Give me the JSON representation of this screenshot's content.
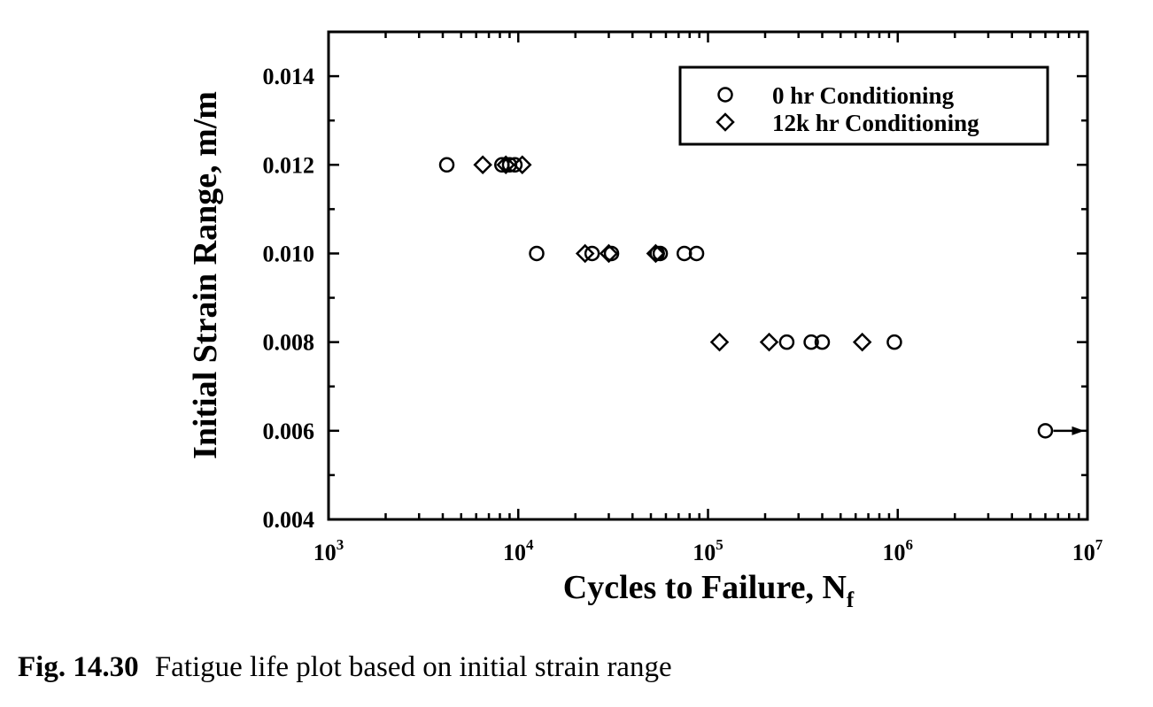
{
  "caption": {
    "number": "Fig. 14.30",
    "text": "Fatigue life plot based on initial strain range"
  },
  "chart_data": {
    "type": "scatter",
    "xlabel": "Cycles to Failure, N",
    "xlabel_subscript": "f",
    "ylabel": "Initial Strain Range, m/m",
    "x_scale": "log",
    "xlim": [
      1000,
      10000000
    ],
    "ylim": [
      0.004,
      0.015
    ],
    "x_ticks": [
      {
        "value": 1000,
        "base": "10",
        "exp": "3"
      },
      {
        "value": 10000,
        "base": "10",
        "exp": "4"
      },
      {
        "value": 100000,
        "base": "10",
        "exp": "5"
      },
      {
        "value": 1000000,
        "base": "10",
        "exp": "6"
      },
      {
        "value": 10000000,
        "base": "10",
        "exp": "7"
      }
    ],
    "y_ticks": [
      {
        "value": 0.004,
        "label": "0.004"
      },
      {
        "value": 0.006,
        "label": "0.006"
      },
      {
        "value": 0.008,
        "label": "0.008"
      },
      {
        "value": 0.01,
        "label": "0.010"
      },
      {
        "value": 0.012,
        "label": "0.012"
      },
      {
        "value": 0.014,
        "label": "0.014"
      }
    ],
    "grid": false,
    "legend_position": "top-right",
    "series": [
      {
        "name": "0 hr Conditioning",
        "marker": "circle",
        "points": [
          {
            "x": 4200,
            "y": 0.012
          },
          {
            "x": 8200,
            "y": 0.012
          },
          {
            "x": 9000,
            "y": 0.012
          },
          {
            "x": 9600,
            "y": 0.012
          },
          {
            "x": 12500,
            "y": 0.01
          },
          {
            "x": 24500,
            "y": 0.01
          },
          {
            "x": 31000,
            "y": 0.01
          },
          {
            "x": 54000,
            "y": 0.01
          },
          {
            "x": 56000,
            "y": 0.01
          },
          {
            "x": 75000,
            "y": 0.01
          },
          {
            "x": 87000,
            "y": 0.01
          },
          {
            "x": 260000,
            "y": 0.008
          },
          {
            "x": 350000,
            "y": 0.008
          },
          {
            "x": 400000,
            "y": 0.008
          },
          {
            "x": 960000,
            "y": 0.008
          },
          {
            "x": 6000000,
            "y": 0.006,
            "runout": true
          }
        ]
      },
      {
        "name": "12k hr Conditioning",
        "marker": "diamond",
        "points": [
          {
            "x": 6500,
            "y": 0.012
          },
          {
            "x": 8600,
            "y": 0.012
          },
          {
            "x": 10500,
            "y": 0.012
          },
          {
            "x": 22500,
            "y": 0.01
          },
          {
            "x": 30000,
            "y": 0.01
          },
          {
            "x": 53000,
            "y": 0.01
          },
          {
            "x": 115000,
            "y": 0.008
          },
          {
            "x": 210000,
            "y": 0.008
          },
          {
            "x": 650000,
            "y": 0.008
          }
        ]
      }
    ]
  }
}
